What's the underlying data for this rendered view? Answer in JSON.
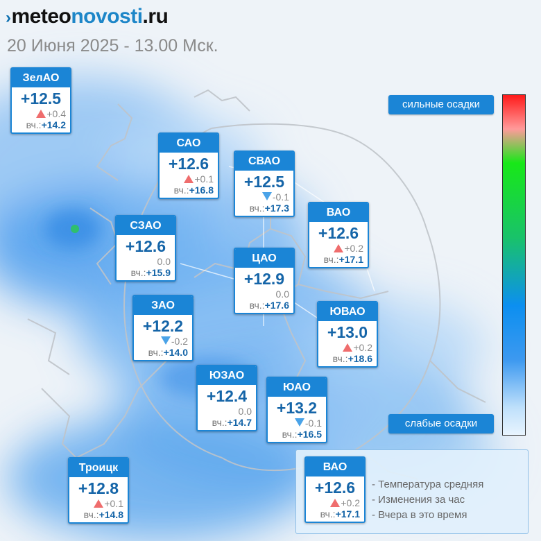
{
  "header": {
    "logo_prefix": "meteo",
    "logo_middle": "novosti",
    "logo_suffix": ".ru",
    "subtitle": "20 Июня 2025 - 13.00 Мск."
  },
  "yesterday_label": "вч.:",
  "districts": [
    {
      "name": "ЗелАО",
      "temp": "+12.5",
      "trend": "up",
      "change": "+0.4",
      "yesterday": "+14.2"
    },
    {
      "name": "САО",
      "temp": "+12.6",
      "trend": "up",
      "change": "+0.1",
      "yesterday": "+16.8"
    },
    {
      "name": "СВАО",
      "temp": "+12.5",
      "trend": "down",
      "change": "-0.1",
      "yesterday": "+17.3"
    },
    {
      "name": "ВАО",
      "temp": "+12.6",
      "trend": "up",
      "change": "+0.2",
      "yesterday": "+17.1"
    },
    {
      "name": "СЗАО",
      "temp": "+12.6",
      "trend": "none",
      "change": "0.0",
      "yesterday": "+15.9"
    },
    {
      "name": "ЦАО",
      "temp": "+12.9",
      "trend": "none",
      "change": "0.0",
      "yesterday": "+17.6"
    },
    {
      "name": "ЗАО",
      "temp": "+12.2",
      "trend": "down",
      "change": "-0.2",
      "yesterday": "+14.0"
    },
    {
      "name": "ЮВАО",
      "temp": "+13.0",
      "trend": "up",
      "change": "+0.2",
      "yesterday": "+18.6"
    },
    {
      "name": "ЮЗАО",
      "temp": "+12.4",
      "trend": "none",
      "change": "0.0",
      "yesterday": "+14.7"
    },
    {
      "name": "ЮАО",
      "temp": "+13.2",
      "trend": "down",
      "change": "-0.1",
      "yesterday": "+16.5"
    },
    {
      "name": "Троицк",
      "temp": "+12.8",
      "trend": "up",
      "change": "+0.1",
      "yesterday": "+14.8"
    }
  ],
  "scale": {
    "heavy_label": "сильные осадки",
    "light_label": "слабые осадки",
    "colors": {
      "heavy": "#ff1a1a",
      "medium": "#18e818",
      "light": "#e8f4fe"
    }
  },
  "legend": {
    "example": {
      "name": "ВАО",
      "temp": "+12.6",
      "trend": "up",
      "change": "+0.2",
      "yesterday": "+17.1"
    },
    "lines": [
      "Температура средняя",
      "Изменения за час",
      "Вчера в это время"
    ]
  },
  "colors": {
    "accent": "#1b85d6",
    "temp_text": "#1565a8",
    "up_arrow": "#ef6d6d",
    "down_arrow": "#4aa3e8"
  }
}
